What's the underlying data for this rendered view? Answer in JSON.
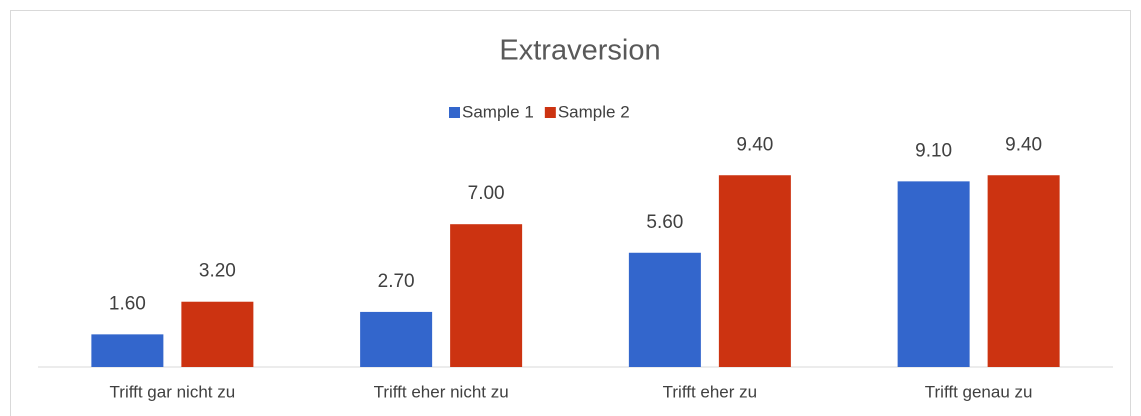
{
  "chart_data": {
    "type": "bar",
    "title": "Extraversion",
    "categories": [
      "Trifft gar nicht zu",
      "Trifft eher nicht zu",
      "Trifft eher zu",
      "Trifft genau zu"
    ],
    "series": [
      {
        "name": "Sample 1",
        "color": "#3366cc",
        "values": [
          1.6,
          2.7,
          5.6,
          9.1
        ],
        "value_labels": [
          "1.60",
          "2.70",
          "5.60",
          "9.10"
        ]
      },
      {
        "name": "Sample 2",
        "color": "#cc3311",
        "values": [
          3.2,
          7.0,
          9.4,
          9.4
        ],
        "value_labels": [
          "3.20",
          "7.00",
          "9.40",
          "9.40"
        ]
      }
    ],
    "legend": "top"
  }
}
